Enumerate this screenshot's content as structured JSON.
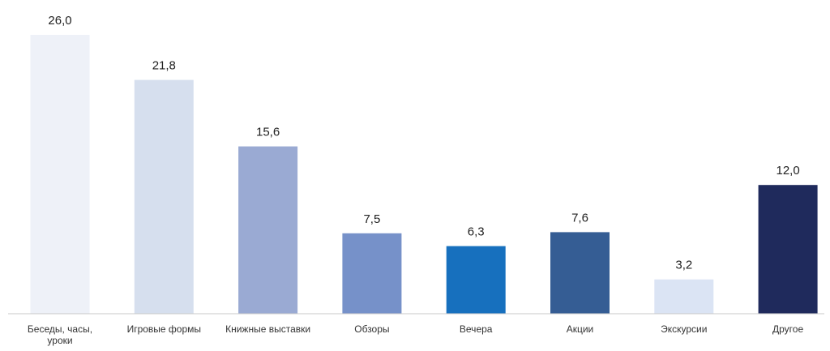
{
  "chart_data": {
    "type": "bar",
    "categories": [
      "Беседы, часы, уроки",
      "Игровые формы",
      "Книжные выставки",
      "Обзоры",
      "Вечера",
      "Акции",
      "Экскурсии",
      "Другое"
    ],
    "category_lines": [
      [
        "Беседы, часы,",
        "уроки"
      ],
      [
        "Игровые формы"
      ],
      [
        "Книжные выставки"
      ],
      [
        "Обзоры"
      ],
      [
        "Вечера"
      ],
      [
        "Акции"
      ],
      [
        "Экскурсии"
      ],
      [
        "Другое"
      ]
    ],
    "values": [
      26.0,
      21.8,
      15.6,
      7.5,
      6.3,
      7.6,
      3.2,
      12.0
    ],
    "value_labels": [
      "26,0",
      "21,8",
      "15,6",
      "7,5",
      "6,3",
      "7,6",
      "3,2",
      "12,0"
    ],
    "colors": [
      "#eef1f8",
      "#d6dfee",
      "#9aaad3",
      "#7691c9",
      "#1770be",
      "#355d94",
      "#dbe4f4",
      "#1f2a5c"
    ],
    "ylim": [
      0,
      26.0
    ],
    "grid": false,
    "legend": "none",
    "title": "",
    "xlabel": "",
    "ylabel": ""
  }
}
